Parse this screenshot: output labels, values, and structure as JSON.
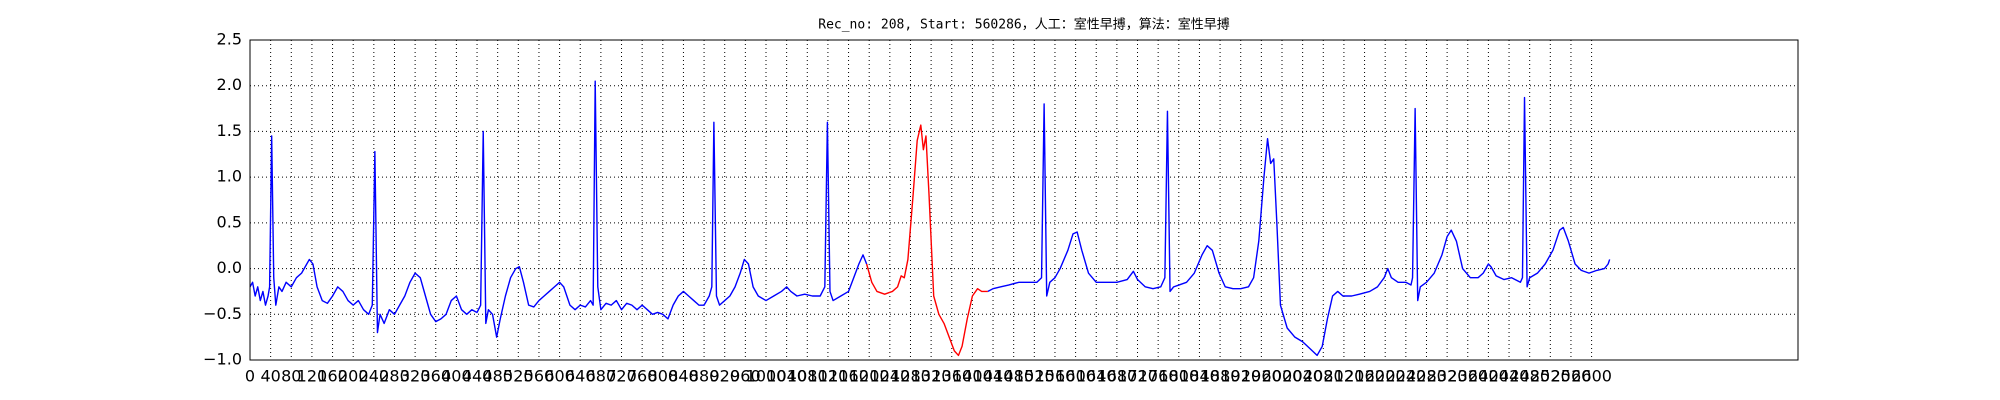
{
  "chart_data": {
    "type": "line",
    "title": "Rec_no: 208, Start: 560286，人工：室性早搏，算法：室性早搏",
    "xlim": [
      0,
      3000
    ],
    "ylim": [
      -1.0,
      2.5
    ],
    "xticks": [
      0,
      40,
      80,
      120,
      160,
      200,
      240,
      280,
      320,
      360,
      400,
      440,
      480,
      520,
      560,
      600,
      640,
      680,
      720,
      760,
      800,
      840,
      880,
      920,
      960,
      1000,
      1040,
      1080,
      1120,
      1160,
      1200,
      1240,
      1280,
      1320,
      1360,
      1400,
      1440,
      1480,
      1520,
      1560,
      1600,
      1640,
      1680,
      1720,
      1760,
      1800,
      1840,
      1880,
      1920,
      1960,
      2000,
      2040,
      2080,
      2120,
      2160,
      2200,
      2240,
      2280,
      2320,
      2360,
      2400,
      2440,
      2480,
      2520,
      2560,
      2600
    ],
    "yticks": [
      {
        "value": -1.0,
        "label": "−1.0"
      },
      {
        "value": -0.5,
        "label": "−0.5"
      },
      {
        "value": 0.0,
        "label": "0.0"
      },
      {
        "value": 0.5,
        "label": "0.5"
      },
      {
        "value": 1.0,
        "label": "1.0"
      },
      {
        "value": 1.5,
        "label": "1.5"
      },
      {
        "value": 2.0,
        "label": "2.0"
      },
      {
        "value": 2.5,
        "label": "2.5"
      }
    ],
    "grid": true,
    "series": [
      {
        "color": "#0000ff",
        "x": [
          0,
          5,
          10,
          15,
          20,
          25,
          30,
          35,
          38,
          42,
          46,
          50,
          56,
          62,
          70,
          80,
          90,
          100,
          110,
          115,
          122,
          130,
          140,
          150,
          160,
          170,
          180,
          190,
          200,
          210,
          220,
          230,
          237,
          242,
          247,
          252,
          260,
          270,
          280,
          290,
          300,
          310,
          320,
          330,
          340,
          350,
          360,
          370,
          380,
          390,
          400,
          410,
          420,
          430,
          440,
          447,
          452,
          457,
          462,
          470,
          478,
          485,
          495,
          505,
          515,
          522,
          530,
          540,
          550,
          560,
          570,
          580,
          590,
          600,
          608,
          620,
          630,
          640,
          650,
          660,
          665,
          669,
          674,
          680,
          690,
          700,
          710,
          720,
          730,
          740,
          750,
          760,
          770,
          780,
          790,
          800,
          810,
          820,
          830,
          840,
          850,
          860,
          870,
          880,
          890,
          895,
          899,
          904,
          910,
          920,
          930,
          940,
          950,
          958,
          966,
          975,
          985,
          1000,
          1015,
          1030,
          1040,
          1048,
          1060,
          1075,
          1090,
          1105,
          1114,
          1119,
          1124,
          1130,
          1145,
          1160,
          1170,
          1180,
          1188,
          1195
        ],
        "values": [
          -0.2,
          -0.15,
          -0.3,
          -0.2,
          -0.35,
          -0.25,
          -0.4,
          -0.3,
          -0.2,
          1.45,
          -0.1,
          -0.4,
          -0.2,
          -0.25,
          -0.15,
          -0.2,
          -0.1,
          -0.05,
          0.05,
          0.1,
          0.05,
          -0.2,
          -0.35,
          -0.38,
          -0.3,
          -0.2,
          -0.25,
          -0.35,
          -0.4,
          -0.35,
          -0.45,
          -0.5,
          -0.4,
          1.28,
          -0.7,
          -0.5,
          -0.6,
          -0.45,
          -0.5,
          -0.4,
          -0.3,
          -0.15,
          -0.05,
          -0.1,
          -0.3,
          -0.5,
          -0.58,
          -0.55,
          -0.5,
          -0.35,
          -0.3,
          -0.45,
          -0.5,
          -0.45,
          -0.48,
          -0.4,
          1.5,
          -0.6,
          -0.45,
          -0.5,
          -0.75,
          -0.55,
          -0.3,
          -0.1,
          0.0,
          0.02,
          -0.15,
          -0.4,
          -0.42,
          -0.35,
          -0.3,
          -0.25,
          -0.2,
          -0.15,
          -0.2,
          -0.4,
          -0.45,
          -0.4,
          -0.42,
          -0.35,
          -0.4,
          2.05,
          -0.2,
          -0.45,
          -0.38,
          -0.4,
          -0.35,
          -0.45,
          -0.38,
          -0.4,
          -0.45,
          -0.4,
          -0.45,
          -0.5,
          -0.48,
          -0.5,
          -0.55,
          -0.4,
          -0.3,
          -0.25,
          -0.3,
          -0.35,
          -0.4,
          -0.4,
          -0.3,
          -0.2,
          1.6,
          -0.3,
          -0.4,
          -0.35,
          -0.3,
          -0.2,
          -0.05,
          0.1,
          0.05,
          -0.2,
          -0.3,
          -0.35,
          -0.3,
          -0.25,
          -0.2,
          -0.25,
          -0.3,
          -0.28,
          -0.3,
          -0.3,
          -0.2,
          1.6,
          -0.25,
          -0.35,
          -0.3,
          -0.25,
          -0.1,
          0.05,
          0.15,
          0.05
        ]
      },
      {
        "color": "#ff0000",
        "x": [
          1195,
          1205,
          1215,
          1230,
          1245,
          1255,
          1262,
          1268,
          1275,
          1285,
          1293,
          1300,
          1305,
          1310,
          1316,
          1325,
          1335,
          1345,
          1355,
          1365,
          1373,
          1380,
          1390,
          1400,
          1410,
          1418,
          1430
        ],
        "values": [
          0.05,
          -0.15,
          -0.25,
          -0.28,
          -0.25,
          -0.2,
          -0.08,
          -0.1,
          0.1,
          0.8,
          1.4,
          1.57,
          1.3,
          1.45,
          0.8,
          -0.3,
          -0.5,
          -0.6,
          -0.75,
          -0.9,
          -0.95,
          -0.85,
          -0.55,
          -0.3,
          -0.22,
          -0.25,
          -0.25
        ]
      },
      {
        "color": "#0000ff",
        "x": [
          1430,
          1440,
          1455,
          1470,
          1490,
          1510,
          1525,
          1534,
          1539,
          1544,
          1550,
          1560,
          1570,
          1585,
          1595,
          1603,
          1612,
          1625,
          1640,
          1660,
          1680,
          1700,
          1712,
          1720,
          1735,
          1750,
          1765,
          1773,
          1778,
          1783,
          1790,
          1800,
          1815,
          1830,
          1845,
          1855,
          1865,
          1878,
          1890,
          1905,
          1920,
          1935,
          1945,
          1955,
          1965,
          1972,
          1978,
          1984,
          1990,
          1997,
          2010,
          2025,
          2040,
          2055,
          2068,
          2078,
          2088,
          2098,
          2108,
          2118,
          2135,
          2150,
          2170,
          2185,
          2198,
          2205,
          2212,
          2225,
          2240,
          2250,
          2253,
          2258,
          2263,
          2268,
          2280,
          2295,
          2310,
          2320,
          2328,
          2338,
          2350,
          2365,
          2380,
          2390,
          2400,
          2405,
          2415,
          2430,
          2445,
          2462,
          2466,
          2470,
          2475,
          2480,
          2495,
          2510,
          2525,
          2538,
          2545,
          2555,
          2568,
          2580,
          2595,
          2610,
          2625,
          2632,
          2635
        ],
        "values": [
          -0.25,
          -0.22,
          -0.2,
          -0.18,
          -0.15,
          -0.15,
          -0.15,
          -0.1,
          1.8,
          -0.3,
          -0.15,
          -0.1,
          0.0,
          0.2,
          0.38,
          0.4,
          0.2,
          -0.05,
          -0.15,
          -0.15,
          -0.15,
          -0.12,
          -0.03,
          -0.12,
          -0.2,
          -0.22,
          -0.2,
          -0.1,
          1.72,
          -0.25,
          -0.2,
          -0.18,
          -0.15,
          -0.05,
          0.15,
          0.25,
          0.2,
          -0.05,
          -0.2,
          -0.22,
          -0.22,
          -0.2,
          -0.1,
          0.3,
          1.0,
          1.42,
          1.15,
          1.2,
          0.5,
          -0.4,
          -0.65,
          -0.75,
          -0.8,
          -0.88,
          -0.95,
          -0.85,
          -0.55,
          -0.3,
          -0.25,
          -0.3,
          -0.3,
          -0.28,
          -0.25,
          -0.2,
          -0.1,
          0.0,
          -0.1,
          -0.15,
          -0.15,
          -0.18,
          -0.1,
          1.75,
          -0.35,
          -0.2,
          -0.15,
          -0.05,
          0.15,
          0.35,
          0.42,
          0.3,
          0.0,
          -0.1,
          -0.1,
          -0.05,
          0.05,
          0.02,
          -0.08,
          -0.12,
          -0.1,
          -0.15,
          -0.1,
          1.87,
          -0.2,
          -0.1,
          -0.05,
          0.05,
          0.2,
          0.42,
          0.45,
          0.3,
          0.05,
          -0.02,
          -0.05,
          -0.02,
          0.0,
          0.05,
          0.1
        ]
      }
    ]
  }
}
